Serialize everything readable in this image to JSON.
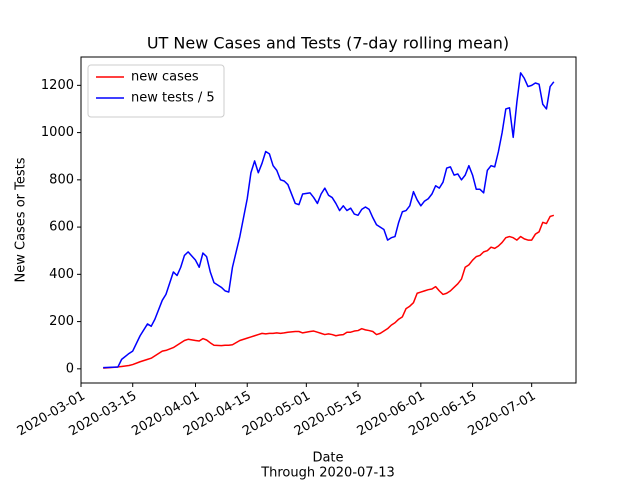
{
  "chart_data": {
    "type": "line",
    "title": "UT New Cases and Tests (7-day rolling mean)",
    "xlabel": "Date",
    "caption": "Through 2020-07-13",
    "ylabel": "New Cases or Tests",
    "legend": "upper left",
    "grid": false,
    "xlim": [
      "2020-03-01",
      "2020-07-13"
    ],
    "xticks": [
      "2020-03-01",
      "2020-03-15",
      "2020-04-01",
      "2020-04-15",
      "2020-05-01",
      "2020-05-15",
      "2020-06-01",
      "2020-06-15",
      "2020-07-01"
    ],
    "ylim": [
      -60,
      1320
    ],
    "yticks": [
      0,
      200,
      400,
      600,
      800,
      1000,
      1200
    ],
    "x": [
      "2020-03-07",
      "2020-03-11",
      "2020-03-12",
      "2020-03-14",
      "2020-03-15",
      "2020-03-17",
      "2020-03-19",
      "2020-03-20",
      "2020-03-21",
      "2020-03-23",
      "2020-03-24",
      "2020-03-26",
      "2020-03-27",
      "2020-03-28",
      "2020-03-29",
      "2020-03-30",
      "2020-04-01",
      "2020-04-02",
      "2020-04-03",
      "2020-04-04",
      "2020-04-05",
      "2020-04-06",
      "2020-04-08",
      "2020-04-09",
      "2020-04-10",
      "2020-04-11",
      "2020-04-13",
      "2020-04-15",
      "2020-04-16",
      "2020-04-17",
      "2020-04-18",
      "2020-04-19",
      "2020-04-20",
      "2020-04-21",
      "2020-04-22",
      "2020-04-23",
      "2020-04-24",
      "2020-04-25",
      "2020-04-26",
      "2020-04-28",
      "2020-04-29",
      "2020-04-30",
      "2020-05-02",
      "2020-05-03",
      "2020-05-04",
      "2020-05-05",
      "2020-05-06",
      "2020-05-07",
      "2020-05-08",
      "2020-05-09",
      "2020-05-10",
      "2020-05-11",
      "2020-05-12",
      "2020-05-13",
      "2020-05-14",
      "2020-05-15",
      "2020-05-16",
      "2020-05-17",
      "2020-05-18",
      "2020-05-19",
      "2020-05-20",
      "2020-05-21",
      "2020-05-22",
      "2020-05-23",
      "2020-05-24",
      "2020-05-25",
      "2020-05-26",
      "2020-05-27",
      "2020-05-28",
      "2020-05-29",
      "2020-05-30",
      "2020-05-31",
      "2020-06-01",
      "2020-06-02",
      "2020-06-03",
      "2020-06-04",
      "2020-06-05",
      "2020-06-06",
      "2020-06-07",
      "2020-06-08",
      "2020-06-09",
      "2020-06-10",
      "2020-06-11",
      "2020-06-12",
      "2020-06-13",
      "2020-06-14",
      "2020-06-15",
      "2020-06-16",
      "2020-06-17",
      "2020-06-18",
      "2020-06-19",
      "2020-06-20",
      "2020-06-21",
      "2020-06-22",
      "2020-06-23",
      "2020-06-24",
      "2020-06-25",
      "2020-06-26",
      "2020-06-27",
      "2020-06-28",
      "2020-06-29",
      "2020-06-30",
      "2020-07-01",
      "2020-07-02",
      "2020-07-03",
      "2020-07-04",
      "2020-07-05",
      "2020-07-06",
      "2020-07-07"
    ],
    "series": [
      {
        "name": "new cases",
        "color": "#ff0000",
        "values": [
          3,
          8,
          10,
          14,
          18,
          30,
          40,
          45,
          55,
          75,
          78,
          90,
          100,
          110,
          120,
          125,
          120,
          118,
          128,
          122,
          110,
          100,
          98,
          100,
          100,
          102,
          120,
          130,
          135,
          140,
          145,
          150,
          148,
          150,
          150,
          152,
          150,
          152,
          155,
          158,
          158,
          152,
          158,
          160,
          155,
          150,
          145,
          148,
          145,
          140,
          143,
          145,
          155,
          155,
          160,
          162,
          170,
          165,
          162,
          158,
          145,
          150,
          160,
          170,
          185,
          195,
          210,
          220,
          255,
          265,
          280,
          320,
          325,
          330,
          335,
          338,
          348,
          330,
          315,
          320,
          330,
          345,
          360,
          380,
          430,
          440,
          460,
          475,
          480,
          495,
          500,
          515,
          510,
          520,
          535,
          555,
          560,
          555,
          545,
          560,
          550,
          545,
          545,
          570,
          580,
          620,
          615,
          645,
          650
        ]
      },
      {
        "name": "new tests / 5",
        "color": "#0000ff",
        "values": [
          5,
          8,
          40,
          65,
          75,
          140,
          190,
          180,
          210,
          290,
          315,
          410,
          395,
          430,
          480,
          495,
          460,
          430,
          490,
          475,
          410,
          365,
          345,
          330,
          325,
          430,
          560,
          720,
          830,
          880,
          830,
          870,
          920,
          910,
          860,
          840,
          800,
          795,
          780,
          700,
          695,
          740,
          745,
          725,
          700,
          740,
          765,
          735,
          725,
          700,
          670,
          690,
          670,
          680,
          655,
          650,
          675,
          685,
          675,
          640,
          610,
          600,
          590,
          545,
          555,
          560,
          620,
          665,
          670,
          690,
          750,
          715,
          690,
          710,
          720,
          740,
          775,
          765,
          790,
          850,
          855,
          820,
          825,
          800,
          820,
          860,
          820,
          760,
          760,
          745,
          840,
          860,
          855,
          920,
          1000,
          1100,
          1105,
          980,
          1130,
          1253,
          1230,
          1195,
          1200,
          1210,
          1205,
          1120,
          1100,
          1195,
          1215
        ]
      }
    ]
  }
}
